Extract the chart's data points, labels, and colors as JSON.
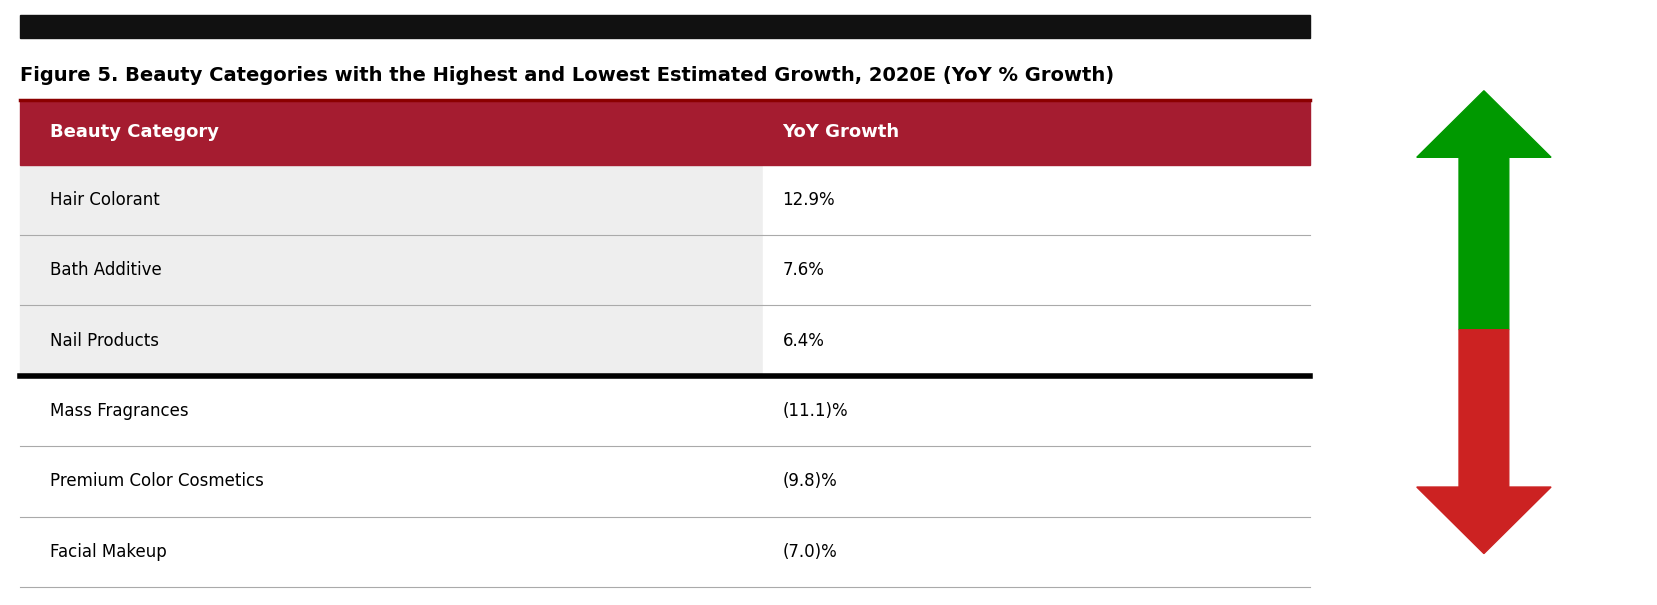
{
  "title": "Figure 5. Beauty Categories with the Highest and Lowest Estimated Growth, 2020E (YoY % Growth)",
  "col1_header": "Beauty Category",
  "col2_header": "YoY Growth",
  "rows": [
    {
      "category": "Hair Colorant",
      "value": "12.9%",
      "section": "top"
    },
    {
      "category": "Bath Additive",
      "value": "7.6%",
      "section": "top"
    },
    {
      "category": "Nail Products",
      "value": "6.4%",
      "section": "top"
    },
    {
      "category": "Mass Fragrances",
      "value": "(11.1)%",
      "section": "bottom"
    },
    {
      "category": "Premium Color Cosmetics",
      "value": "(9.8)%",
      "section": "bottom"
    },
    {
      "category": "Facial Makeup",
      "value": "(7.0)%",
      "section": "bottom"
    }
  ],
  "header_bg_color": "#A51C30",
  "header_text_color": "#FFFFFF",
  "top_row_bg": "#EEEEEE",
  "bottom_row_bg": "#FFFFFF",
  "divider_color_thick": "#000000",
  "divider_color_thin": "#AAAAAA",
  "title_fontsize": 14,
  "header_fontsize": 13,
  "row_fontsize": 12,
  "arrow_green": "#009900",
  "arrow_red": "#CC2222",
  "top_bar_color": "#111111",
  "figure_bg": "#FFFFFF"
}
